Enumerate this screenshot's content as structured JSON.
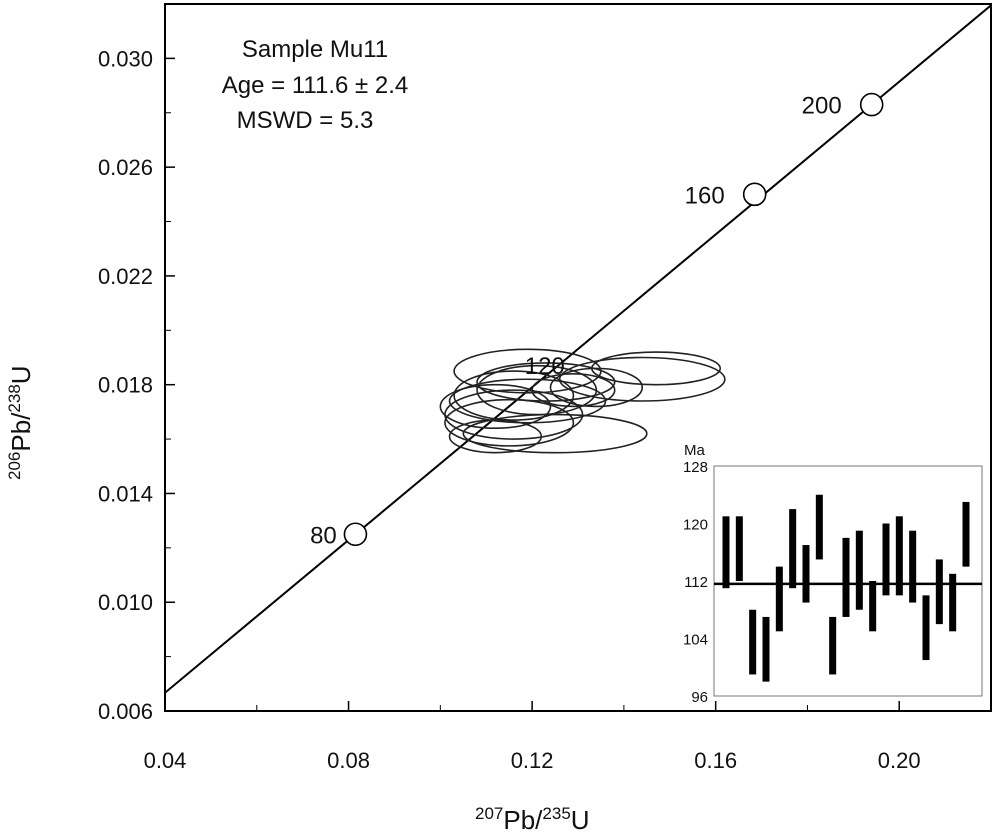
{
  "chart_data": {
    "type": "concordia",
    "xlabel": {
      "sup1": "207",
      "base1": "Pb/",
      "sup2": "235",
      "base2": "U"
    },
    "ylabel": {
      "sup1": "206",
      "base1": "Pb/",
      "sup2": "238",
      "base2": "U"
    },
    "xlim": [
      0.04,
      0.22
    ],
    "ylim": [
      0.006,
      0.032
    ],
    "x_ticks": [
      0.04,
      0.08,
      0.12,
      0.16,
      0.2
    ],
    "x_tick_labels": [
      "0.04",
      "0.08",
      "0.12",
      "0.16",
      "0.20"
    ],
    "y_ticks": [
      0.006,
      0.01,
      0.014,
      0.018,
      0.022,
      0.026,
      0.03
    ],
    "y_tick_labels": [
      "0.006",
      "0.010",
      "0.014",
      "0.018",
      "0.022",
      "0.026",
      "0.030"
    ],
    "annotation": [
      "Sample Mu11",
      "Age = 111.6 ± 2.4",
      "MSWD = 5.3"
    ],
    "concordia_points": [
      {
        "label": "80",
        "x": 0.0815,
        "y": 0.0125
      },
      {
        "label": "120",
        "x": 0.1245,
        "y": 0.0188
      },
      {
        "label": "160",
        "x": 0.1685,
        "y": 0.025
      },
      {
        "label": "200",
        "x": 0.194,
        "y": 0.0283
      }
    ],
    "ellipses": [
      {
        "cx": 0.115,
        "cy": 0.0166,
        "rx": 0.014,
        "ry": 0.00085
      },
      {
        "cx": 0.125,
        "cy": 0.0162,
        "rx": 0.02,
        "ry": 0.0007
      },
      {
        "cx": 0.116,
        "cy": 0.0169,
        "rx": 0.015,
        "ry": 0.0009
      },
      {
        "cx": 0.112,
        "cy": 0.0172,
        "rx": 0.012,
        "ry": 0.0008
      },
      {
        "cx": 0.119,
        "cy": 0.0174,
        "rx": 0.017,
        "ry": 0.0008
      },
      {
        "cx": 0.116,
        "cy": 0.0176,
        "rx": 0.013,
        "ry": 0.0009
      },
      {
        "cx": 0.121,
        "cy": 0.0178,
        "rx": 0.013,
        "ry": 0.0009
      },
      {
        "cx": 0.123,
        "cy": 0.0181,
        "rx": 0.015,
        "ry": 0.0007
      },
      {
        "cx": 0.119,
        "cy": 0.0185,
        "rx": 0.016,
        "ry": 0.0008
      },
      {
        "cx": 0.144,
        "cy": 0.0182,
        "rx": 0.018,
        "ry": 0.0008
      },
      {
        "cx": 0.147,
        "cy": 0.0186,
        "rx": 0.014,
        "ry": 0.0006
      },
      {
        "cx": 0.129,
        "cy": 0.0178,
        "rx": 0.009,
        "ry": 0.0006
      },
      {
        "cx": 0.112,
        "cy": 0.0161,
        "rx": 0.01,
        "ry": 0.0006
      },
      {
        "cx": 0.134,
        "cy": 0.0179,
        "rx": 0.01,
        "ry": 0.0007
      }
    ],
    "inset": {
      "unit_label": "Ma",
      "ylim": [
        96,
        128
      ],
      "y_ticks": [
        96,
        104,
        112,
        120,
        128
      ],
      "y_tick_labels": [
        "96",
        "104",
        "112",
        "120",
        "128"
      ],
      "mean": 111.6,
      "bars": [
        [
          111,
          121
        ],
        [
          112,
          121
        ],
        [
          99,
          108
        ],
        [
          98,
          107
        ],
        [
          105,
          114
        ],
        [
          111,
          122
        ],
        [
          109,
          117
        ],
        [
          115,
          124
        ],
        [
          99,
          107
        ],
        [
          107,
          118
        ],
        [
          108,
          119
        ],
        [
          105,
          112
        ],
        [
          110,
          120
        ],
        [
          110,
          121
        ],
        [
          109,
          119
        ],
        [
          101,
          110
        ],
        [
          106,
          115
        ],
        [
          105,
          113
        ],
        [
          114,
          123
        ]
      ]
    }
  }
}
